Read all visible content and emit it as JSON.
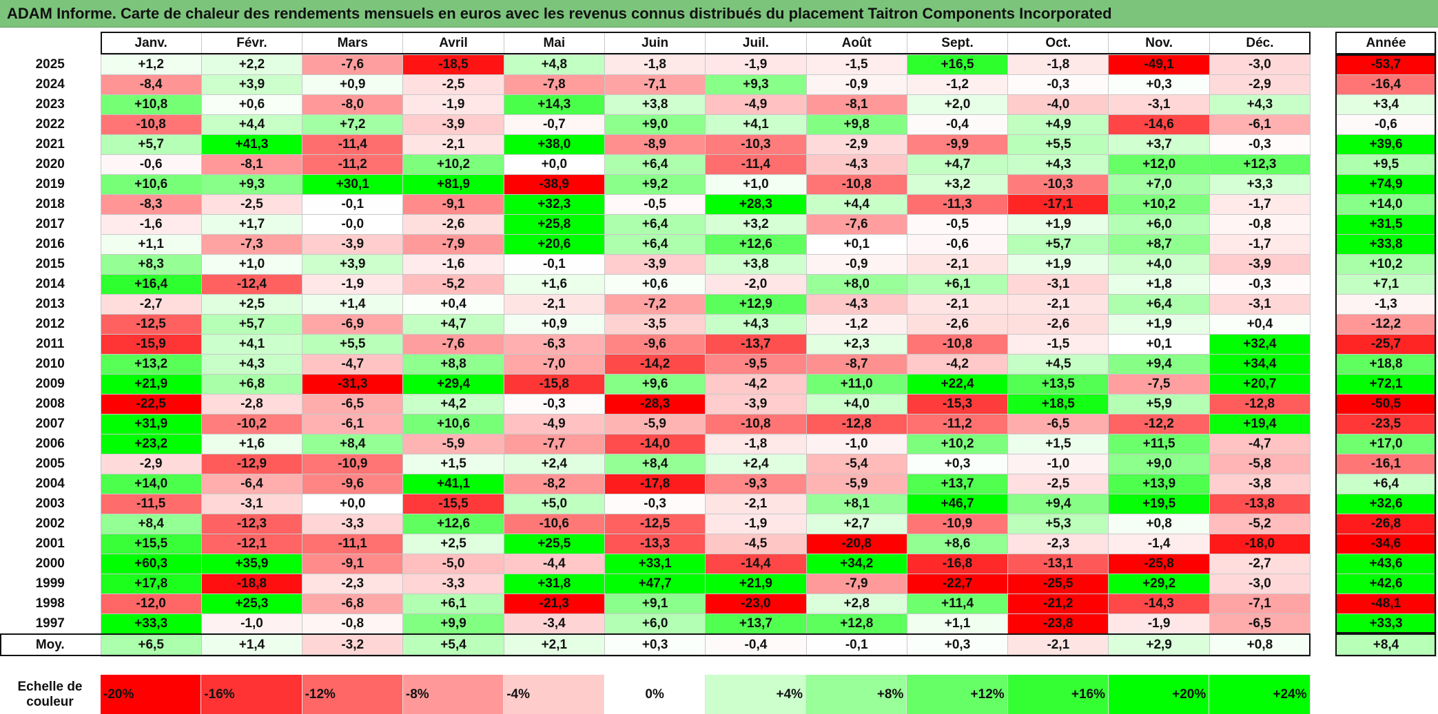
{
  "chart_data": {
    "type": "heatmap",
    "title": "ADAM Informe. Carte de chaleur des rendements mensuels en euros avec les revenus connus distribués du placement Taitron Components Incorporated",
    "months": [
      "Janv.",
      "Févr.",
      "Mars",
      "Avril",
      "Mai",
      "Juin",
      "Juil.",
      "Août",
      "Sept.",
      "Oct.",
      "Nov.",
      "Déc."
    ],
    "annual_header": "Année",
    "avg_label": "Moy.",
    "rows": [
      {
        "year": "2025",
        "values": [
          "+1,2",
          "+2,2",
          "-7,6",
          "-18,5",
          "+4,8",
          "-1,8",
          "-1,9",
          "-1,5",
          "+16,5",
          "-1,8",
          "-49,1",
          "-3,0"
        ],
        "annual": "-53,7"
      },
      {
        "year": "2024",
        "values": [
          "-8,4",
          "+3,9",
          "+0,9",
          "-2,5",
          "-7,8",
          "-7,1",
          "+9,3",
          "-0,9",
          "-1,2",
          "-0,3",
          "+0,3",
          "-2,9"
        ],
        "annual": "-16,4"
      },
      {
        "year": "2023",
        "values": [
          "+10,8",
          "+0,6",
          "-8,0",
          "-1,9",
          "+14,3",
          "+3,8",
          "-4,9",
          "-8,1",
          "+2,0",
          "-4,0",
          "-3,1",
          "+4,3"
        ],
        "annual": "+3,4"
      },
      {
        "year": "2022",
        "values": [
          "-10,8",
          "+4,4",
          "+7,2",
          "-3,9",
          "-0,7",
          "+9,0",
          "+4,1",
          "+9,8",
          "-0,4",
          "+4,9",
          "-14,6",
          "-6,1"
        ],
        "annual": "-0,6"
      },
      {
        "year": "2021",
        "values": [
          "+5,7",
          "+41,3",
          "-11,4",
          "-2,1",
          "+38,0",
          "-8,9",
          "-10,3",
          "-2,9",
          "-9,9",
          "+5,5",
          "+3,7",
          "-0,3"
        ],
        "annual": "+39,6"
      },
      {
        "year": "2020",
        "values": [
          "-0,6",
          "-8,1",
          "-11,2",
          "+10,2",
          "+0,0",
          "+6,4",
          "-11,4",
          "-4,3",
          "+4,7",
          "+4,3",
          "+12,0",
          "+12,3"
        ],
        "annual": "+9,5"
      },
      {
        "year": "2019",
        "values": [
          "+10,6",
          "+9,3",
          "+30,1",
          "+81,9",
          "-38,9",
          "+9,2",
          "+1,0",
          "-10,8",
          "+3,2",
          "-10,3",
          "+7,0",
          "+3,3"
        ],
        "annual": "+74,9"
      },
      {
        "year": "2018",
        "values": [
          "-8,3",
          "-2,5",
          "-0,1",
          "-9,1",
          "+32,3",
          "-0,5",
          "+28,3",
          "+4,4",
          "-11,3",
          "-17,1",
          "+10,2",
          "-1,7"
        ],
        "annual": "+14,0"
      },
      {
        "year": "2017",
        "values": [
          "-1,6",
          "+1,7",
          "-0,0",
          "-2,6",
          "+25,8",
          "+6,4",
          "+3,2",
          "-7,6",
          "-0,5",
          "+1,9",
          "+6,0",
          "-0,8"
        ],
        "annual": "+31,5"
      },
      {
        "year": "2016",
        "values": [
          "+1,1",
          "-7,3",
          "-3,9",
          "-7,9",
          "+20,6",
          "+6,4",
          "+12,6",
          "+0,1",
          "-0,6",
          "+5,7",
          "+8,7",
          "-1,7"
        ],
        "annual": "+33,8"
      },
      {
        "year": "2015",
        "values": [
          "+8,3",
          "+1,0",
          "+3,9",
          "-1,6",
          "-0,1",
          "-3,9",
          "+3,8",
          "-0,9",
          "-2,1",
          "+1,9",
          "+4,0",
          "-3,9"
        ],
        "annual": "+10,2"
      },
      {
        "year": "2014",
        "values": [
          "+16,4",
          "-12,4",
          "-1,9",
          "-5,2",
          "+1,6",
          "+0,6",
          "-2,0",
          "+8,0",
          "+6,1",
          "-3,1",
          "+1,8",
          "-0,3"
        ],
        "annual": "+7,1"
      },
      {
        "year": "2013",
        "values": [
          "-2,7",
          "+2,5",
          "+1,4",
          "+0,4",
          "-2,1",
          "-7,2",
          "+12,9",
          "-4,3",
          "-2,1",
          "-2,1",
          "+6,4",
          "-3,1"
        ],
        "annual": "-1,3"
      },
      {
        "year": "2012",
        "values": [
          "-12,5",
          "+5,7",
          "-6,9",
          "+4,7",
          "+0,9",
          "-3,5",
          "+4,3",
          "-1,2",
          "-2,6",
          "-2,6",
          "+1,9",
          "+0,4"
        ],
        "annual": "-12,2"
      },
      {
        "year": "2011",
        "values": [
          "-15,9",
          "+4,1",
          "+5,5",
          "-7,6",
          "-6,3",
          "-9,6",
          "-13,7",
          "+2,3",
          "-10,8",
          "-1,5",
          "+0,1",
          "+32,4"
        ],
        "annual": "-25,7"
      },
      {
        "year": "2010",
        "values": [
          "+13,2",
          "+4,3",
          "-4,7",
          "+8,8",
          "-7,0",
          "-14,2",
          "-9,5",
          "-8,7",
          "-4,2",
          "+4,5",
          "+9,4",
          "+34,4"
        ],
        "annual": "+18,8"
      },
      {
        "year": "2009",
        "values": [
          "+21,9",
          "+6,8",
          "-31,3",
          "+29,4",
          "-15,8",
          "+9,6",
          "-4,2",
          "+11,0",
          "+22,4",
          "+13,5",
          "-7,5",
          "+20,7"
        ],
        "annual": "+72,1"
      },
      {
        "year": "2008",
        "values": [
          "-22,5",
          "-2,8",
          "-6,5",
          "+4,2",
          "-0,3",
          "-28,3",
          "-3,9",
          "+4,0",
          "-15,3",
          "+18,5",
          "+5,9",
          "-12,8"
        ],
        "annual": "-50,5"
      },
      {
        "year": "2007",
        "values": [
          "+31,9",
          "-10,2",
          "-6,1",
          "+10,6",
          "-4,9",
          "-5,9",
          "-10,8",
          "-12,8",
          "-11,2",
          "-6,5",
          "-12,2",
          "+19,4"
        ],
        "annual": "-23,5"
      },
      {
        "year": "2006",
        "values": [
          "+23,2",
          "+1,6",
          "+8,4",
          "-5,9",
          "-7,7",
          "-14,0",
          "-1,8",
          "-1,0",
          "+10,2",
          "+1,5",
          "+11,5",
          "-4,7"
        ],
        "annual": "+17,0"
      },
      {
        "year": "2005",
        "values": [
          "-2,9",
          "-12,9",
          "-10,9",
          "+1,5",
          "+2,4",
          "+8,4",
          "+2,4",
          "-5,4",
          "+0,3",
          "-1,0",
          "+9,0",
          "-5,8"
        ],
        "annual": "-16,1"
      },
      {
        "year": "2004",
        "values": [
          "+14,0",
          "-6,4",
          "-9,6",
          "+41,1",
          "-8,2",
          "-17,8",
          "-9,3",
          "-5,9",
          "+13,7",
          "-2,5",
          "+13,9",
          "-3,8"
        ],
        "annual": "+6,4"
      },
      {
        "year": "2003",
        "values": [
          "-11,5",
          "-3,1",
          "+0,0",
          "-15,5",
          "+5,0",
          "-0,3",
          "-2,1",
          "+8,1",
          "+46,7",
          "+9,4",
          "+19,5",
          "-13,8"
        ],
        "annual": "+32,6"
      },
      {
        "year": "2002",
        "values": [
          "+8,4",
          "-12,3",
          "-3,3",
          "+12,6",
          "-10,6",
          "-12,5",
          "-1,9",
          "+2,7",
          "-10,9",
          "+5,3",
          "+0,8",
          "-5,2"
        ],
        "annual": "-26,8"
      },
      {
        "year": "2001",
        "values": [
          "+15,5",
          "-12,1",
          "-11,1",
          "+2,5",
          "+25,5",
          "-13,3",
          "-4,5",
          "-20,8",
          "+8,6",
          "-2,3",
          "-1,4",
          "-18,0"
        ],
        "annual": "-34,6"
      },
      {
        "year": "2000",
        "values": [
          "+60,3",
          "+35,9",
          "-9,1",
          "-5,0",
          "-4,4",
          "+33,1",
          "-14,4",
          "+34,2",
          "-16,8",
          "-13,1",
          "-25,8",
          "-2,7"
        ],
        "annual": "+43,6"
      },
      {
        "year": "1999",
        "values": [
          "+17,8",
          "-18,8",
          "-2,3",
          "-3,3",
          "+31,8",
          "+47,7",
          "+21,9",
          "-7,9",
          "-22,7",
          "-25,5",
          "+29,2",
          "-3,0"
        ],
        "annual": "+42,6"
      },
      {
        "year": "1998",
        "values": [
          "-12,0",
          "+25,3",
          "-6,8",
          "+6,1",
          "-21,3",
          "+9,1",
          "-23,0",
          "+2,8",
          "+11,4",
          "-21,2",
          "-14,3",
          "-7,1"
        ],
        "annual": "-48,1"
      },
      {
        "year": "1997",
        "values": [
          "+33,3",
          "-1,0",
          "-0,8",
          "+9,9",
          "-3,4",
          "+6,0",
          "+13,7",
          "+12,8",
          "+1,1",
          "-23,8",
          "-1,9",
          "-6,5"
        ],
        "annual": "+33,3"
      }
    ],
    "averages": [
      "+6,5",
      "+1,4",
      "-3,2",
      "+5,4",
      "+2,1",
      "+0,3",
      "-0,4",
      "-0,1",
      "+0,3",
      "-2,1",
      "+2,9",
      "+0,8"
    ],
    "annual_average": "+8,4",
    "color_scale": {
      "label": "Echelle de couleur",
      "stops": [
        "-20%",
        "-16%",
        "-12%",
        "-8%",
        "-4%",
        "0%",
        "+4%",
        "+8%",
        "+12%",
        "+16%",
        "+20%",
        "+24%"
      ],
      "stop_values": [
        -20,
        -16,
        -12,
        -8,
        -4,
        0,
        4,
        8,
        12,
        16,
        20,
        24
      ],
      "negative_color": "#ff0000",
      "neutral_color": "#ffffff",
      "positive_color": "#00ff00"
    }
  }
}
